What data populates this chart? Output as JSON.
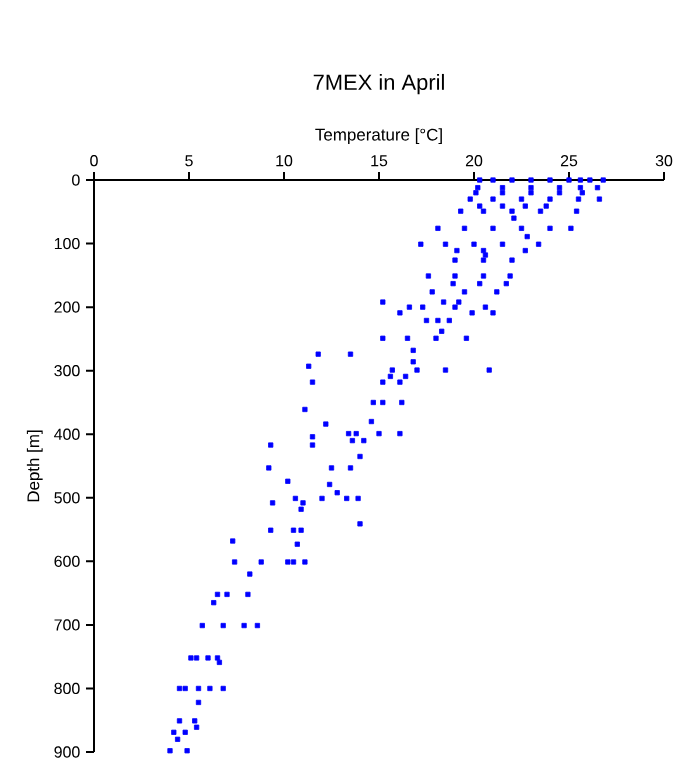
{
  "chart_data": {
    "type": "scatter",
    "title": "7MEX in April",
    "xlabel": "Temperature [°C]",
    "ylabel": "Depth [m]",
    "xlim": [
      0,
      30
    ],
    "xticks": [
      0,
      5,
      10,
      15,
      20,
      25,
      30
    ],
    "ylim": [
      900,
      0
    ],
    "yticks": [
      0,
      100,
      200,
      300,
      400,
      500,
      600,
      700,
      800,
      900
    ],
    "marker": "square",
    "x": [
      20.3,
      21,
      22,
      23,
      24,
      25,
      25.6,
      26.1,
      26.8,
      20.2,
      21.5,
      23,
      24.5,
      25.6,
      26.5,
      20.1,
      21.5,
      23,
      24.5,
      25.7,
      19.8,
      21,
      22.5,
      24,
      25.5,
      26.6,
      20.3,
      21.5,
      22.7,
      23.8,
      19.3,
      20.5,
      22,
      23.5,
      25.4,
      22.1,
      18.1,
      19.5,
      21,
      22.5,
      24,
      25.1,
      22.8,
      17.2,
      18.5,
      20,
      21.5,
      23.4,
      19.1,
      20.5,
      22.7,
      20.6,
      19.0,
      20.5,
      22.0,
      17.6,
      19,
      20.5,
      21.9,
      18.9,
      20.3,
      21.7,
      17.8,
      19.5,
      21.2,
      15.2,
      18.4,
      19.2,
      16.6,
      17.3,
      19,
      20.6,
      21.0,
      16.1,
      19.9,
      17.5,
      18.1,
      18.7,
      18.3,
      15.2,
      16.5,
      18,
      19.6,
      16.8,
      11.8,
      13.5,
      16.8,
      11.3,
      15.7,
      17,
      18.5,
      20.8,
      15.6,
      16.4,
      11.5,
      15.2,
      16.1,
      14.7,
      15.2,
      16.2,
      11.1,
      12.2,
      14.6,
      13.4,
      13.8,
      15,
      16.1,
      11.5,
      13.6,
      14.2,
      9.3,
      11.5,
      14.0,
      9.2,
      12.5,
      13.5,
      10.2,
      12.4,
      12.8,
      10.6,
      12,
      13.3,
      13.9,
      9.4,
      11.0,
      10.9,
      14.0,
      9.3,
      10.5,
      10.9,
      7.3,
      10.7,
      7.4,
      8.8,
      10.2,
      10.5,
      11.1,
      8.2,
      6.5,
      7.0,
      8.1,
      6.3,
      5.7,
      6.8,
      7.9,
      8.6,
      5.1,
      5.4,
      6.0,
      6.5,
      6.6,
      4.5,
      4.8,
      5.5,
      6.1,
      6.8,
      5.5,
      4.5,
      5.3,
      5.4,
      4.2,
      4.8,
      4.4,
      4.0,
      4.9
    ],
    "values": [
      0,
      0,
      0,
      0,
      0,
      0,
      0,
      0,
      0,
      12,
      12,
      12,
      12,
      12,
      12,
      20,
      20,
      20,
      20,
      20,
      30,
      30,
      30,
      30,
      30,
      30,
      41,
      41,
      41,
      41,
      49,
      49,
      49,
      49,
      49,
      60,
      76,
      76,
      76,
      76,
      76,
      76,
      89,
      101,
      101,
      101,
      101,
      101,
      111,
      111,
      111,
      118,
      126,
      126,
      126,
      151,
      151,
      151,
      151,
      163,
      163,
      163,
      176,
      176,
      176,
      192,
      192,
      192,
      200,
      200,
      200,
      200,
      209,
      209,
      209,
      221,
      221,
      221,
      238,
      249,
      249,
      249,
      249,
      268,
      274,
      274,
      286,
      293,
      299,
      299,
      299,
      299,
      309,
      309,
      318,
      318,
      318,
      350,
      350,
      350,
      361,
      384,
      380,
      399,
      399,
      399,
      399,
      404,
      410,
      410,
      417,
      417,
      435,
      453,
      453,
      453,
      474,
      479,
      492,
      501,
      501,
      501,
      501,
      508,
      508,
      518,
      541,
      551,
      551,
      551,
      568,
      573,
      601,
      601,
      601,
      601,
      601,
      620,
      652,
      652,
      652,
      665,
      701,
      701,
      701,
      701,
      752,
      752,
      752,
      752,
      759,
      800,
      800,
      800,
      800,
      800,
      822,
      851,
      851,
      861,
      869,
      869,
      880,
      898,
      898
    ],
    "color": "#0000ff"
  }
}
